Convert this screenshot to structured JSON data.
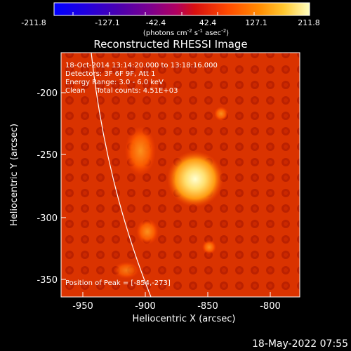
{
  "colorbar": {
    "tick_labels": [
      "-211.8",
      "-127.1",
      "-42.4",
      "42.4",
      "127.1",
      "211.8"
    ],
    "units_text": "(photons cm",
    "units_exp1": "-2",
    "units_mid": " s",
    "units_exp2": "-1",
    "units_mid2": " asec",
    "units_exp3": "-2",
    "units_close": ")"
  },
  "image": {
    "title": "Reconstructed RHESSI Image",
    "info_lines": [
      "18-Oct-2014 13:14:20.000 to 13:18:16.000",
      "Detectors: 3F 6F 9F, Att 1",
      "Energy Range: 3.0 - 6.0 keV",
      "Clean     Total counts: 4.51E+03"
    ],
    "peak_label": "Position of Peak = [-854,-273]",
    "x_axis_label": "Heliocentric X (arcsec)",
    "y_axis_label": "Heliocentric Y (arcsec)",
    "x_ticks": [
      "-950",
      "-900",
      "-850",
      "-800"
    ],
    "y_ticks": [
      "-200",
      "-250",
      "-300",
      "-350"
    ],
    "footer_date": "18-May-2022 07:55"
  }
}
